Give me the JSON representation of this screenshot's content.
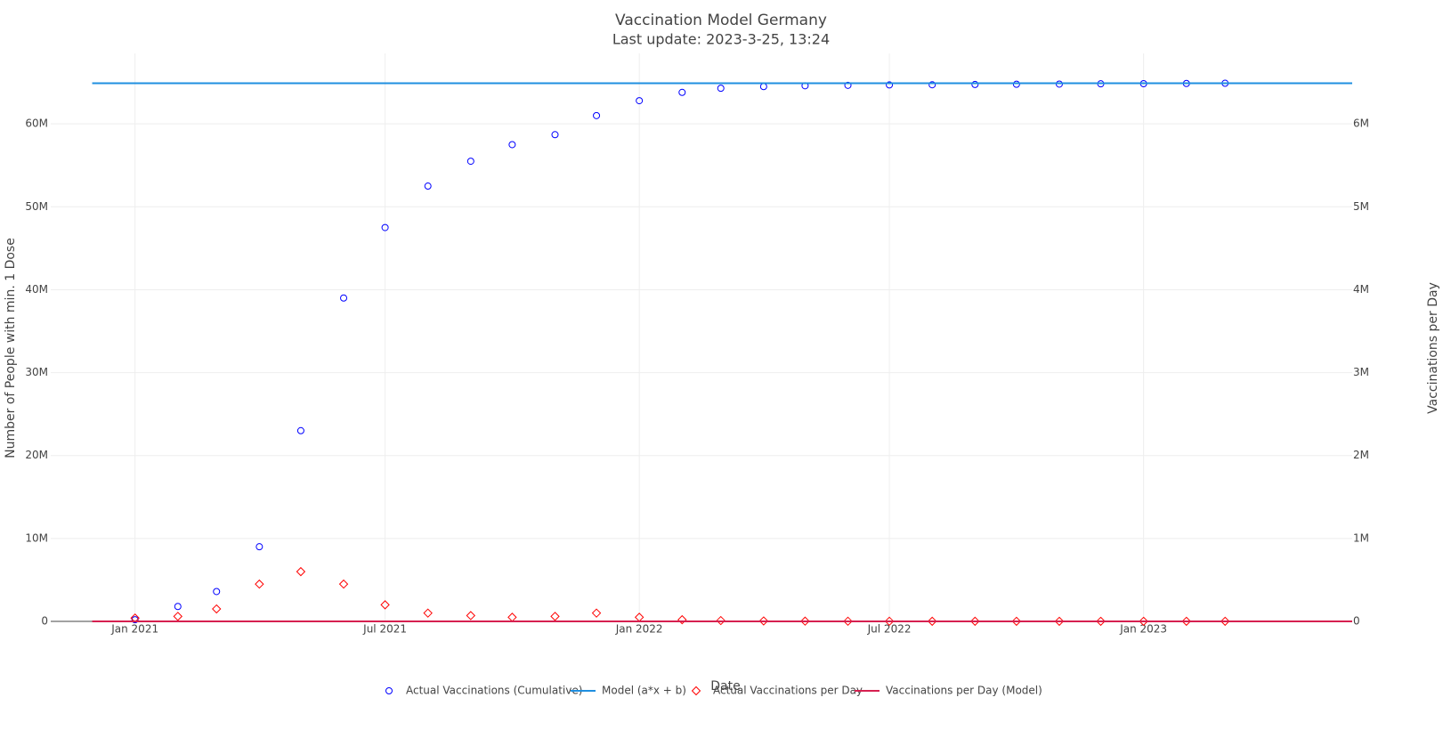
{
  "chart_data": {
    "type": "scatter",
    "title": "Vaccination Model Germany",
    "subtitle": "Last update: 2023-3-25, 13:24",
    "x_label": "Date",
    "y_label": "Number of People with min. 1 Dose",
    "y2_label": "Vaccinations per Day",
    "xlim": [
      "2020-11",
      "2023-06"
    ],
    "xticks": [
      {
        "value": "2021-01",
        "label": "Jan 2021"
      },
      {
        "value": "2021-07",
        "label": "Jul 2021"
      },
      {
        "value": "2022-01",
        "label": "Jan 2022"
      },
      {
        "value": "2022-07",
        "label": "Jul 2022"
      },
      {
        "value": "2023-01",
        "label": "Jan 2023"
      }
    ],
    "ylim": [
      0,
      68500000
    ],
    "yticks": [
      {
        "value": 0,
        "label": "0"
      },
      {
        "value": 10000000,
        "label": "10M"
      },
      {
        "value": 20000000,
        "label": "20M"
      },
      {
        "value": 30000000,
        "label": "30M"
      },
      {
        "value": 40000000,
        "label": "40M"
      },
      {
        "value": 50000000,
        "label": "50M"
      },
      {
        "value": 60000000,
        "label": "60M"
      }
    ],
    "y2lim": [
      0,
      6850000
    ],
    "y2ticks": [
      {
        "value": 0,
        "label": "0"
      },
      {
        "value": 1000000,
        "label": "1M"
      },
      {
        "value": 2000000,
        "label": "2M"
      },
      {
        "value": 3000000,
        "label": "3M"
      },
      {
        "value": 4000000,
        "label": "4M"
      },
      {
        "value": 5000000,
        "label": "5M"
      },
      {
        "value": 6000000,
        "label": "6M"
      }
    ],
    "grid": true,
    "legend": "bottom",
    "series": [
      {
        "name": "Actual Vaccinations (Cumulative)",
        "color": "#0000ff",
        "mode": "circle",
        "x": [
          "2021-01",
          "2021-02",
          "2021-03",
          "2021-04",
          "2021-05",
          "2021-06",
          "2021-07",
          "2021-08",
          "2021-09",
          "2021-10",
          "2021-11",
          "2021-12",
          "2022-01",
          "2022-02",
          "2022-03",
          "2022-04",
          "2022-05",
          "2022-06",
          "2022-07",
          "2022-08",
          "2022-09",
          "2022-10",
          "2022-11",
          "2022-12",
          "2023-01",
          "2023-02",
          "2023-03"
        ],
        "values": [
          200000,
          1800000,
          3600000,
          9000000,
          23000000,
          39000000,
          47500000,
          52500000,
          55500000,
          57500000,
          58700000,
          61000000,
          62800000,
          63800000,
          64300000,
          64500000,
          64600000,
          64650000,
          64700000,
          64720000,
          64750000,
          64780000,
          64800000,
          64830000,
          64850000,
          64870000,
          64900000
        ]
      },
      {
        "name": "Model (a*x + b)",
        "color": "#1f8fe0",
        "mode": "line",
        "x": [
          "2020-12",
          "2023-06"
        ],
        "values": [
          64900000,
          64900000
        ]
      },
      {
        "name": "Actual Vaccinations per Day",
        "color": "#ff0000",
        "mode": "diamond",
        "axis": "y2",
        "x": [
          "2021-01",
          "2021-02",
          "2021-03",
          "2021-04",
          "2021-05",
          "2021-06",
          "2021-07",
          "2021-08",
          "2021-09",
          "2021-10",
          "2021-11",
          "2021-12",
          "2022-01",
          "2022-02",
          "2022-03",
          "2022-04",
          "2022-05",
          "2022-06",
          "2022-07",
          "2022-08",
          "2022-09",
          "2022-10",
          "2022-11",
          "2022-12",
          "2023-01",
          "2023-02",
          "2023-03"
        ],
        "values": [
          40000,
          60000,
          150000,
          450000,
          600000,
          450000,
          200000,
          100000,
          70000,
          50000,
          60000,
          100000,
          50000,
          20000,
          10000,
          5000,
          3000,
          2000,
          2000,
          1500,
          1500,
          1000,
          1000,
          1000,
          1000,
          1000,
          1000
        ]
      },
      {
        "name": "Vaccinations per Day (Model)",
        "color": "#d62050",
        "mode": "line",
        "axis": "y2",
        "x": [
          "2020-12",
          "2023-06"
        ],
        "values": [
          0,
          0
        ]
      }
    ]
  }
}
